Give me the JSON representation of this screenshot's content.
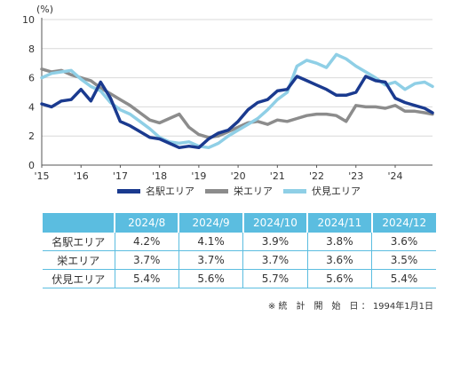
{
  "chart_data": {
    "type": "line",
    "ylabel": "(%)",
    "ylim": [
      0,
      10
    ],
    "yticks": [
      "0",
      "2",
      "4",
      "6",
      "8",
      "10"
    ],
    "xticks": [
      "'15",
      "'16",
      "'17",
      "'18",
      "'19",
      "'20",
      "'21",
      "'22",
      "'23",
      "'24"
    ],
    "x": [
      2015.0,
      2015.25,
      2015.5,
      2015.75,
      2016.0,
      2016.25,
      2016.5,
      2016.75,
      2017.0,
      2017.25,
      2017.5,
      2017.75,
      2018.0,
      2018.25,
      2018.5,
      2018.75,
      2019.0,
      2019.25,
      2019.5,
      2019.75,
      2020.0,
      2020.25,
      2020.5,
      2020.75,
      2021.0,
      2021.25,
      2021.5,
      2021.75,
      2022.0,
      2022.25,
      2022.5,
      2022.75,
      2023.0,
      2023.25,
      2023.5,
      2023.75,
      2024.0,
      2024.25,
      2024.5,
      2024.75,
      2024.95
    ],
    "series": [
      {
        "name": "名駅エリア",
        "color": "#1a3a8f",
        "width": 3.5,
        "values": [
          4.2,
          4.0,
          4.4,
          4.5,
          5.2,
          4.4,
          5.7,
          4.6,
          3.0,
          2.7,
          2.3,
          1.9,
          1.8,
          1.5,
          1.2,
          1.3,
          1.2,
          1.8,
          2.2,
          2.4,
          3.0,
          3.8,
          4.3,
          4.5,
          5.1,
          5.2,
          6.1,
          5.8,
          5.5,
          5.2,
          4.8,
          4.8,
          5.0,
          6.1,
          5.8,
          5.7,
          4.6,
          4.3,
          4.1,
          3.9,
          3.6
        ]
      },
      {
        "name": "栄エリア",
        "color": "#8c8c8c",
        "width": 3.5,
        "values": [
          6.6,
          6.4,
          6.5,
          6.2,
          6.0,
          5.8,
          5.3,
          4.9,
          4.5,
          4.1,
          3.6,
          3.1,
          2.9,
          3.2,
          3.5,
          2.6,
          2.1,
          1.9,
          2.0,
          2.3,
          2.6,
          2.9,
          3.0,
          2.8,
          3.1,
          3.0,
          3.2,
          3.4,
          3.5,
          3.5,
          3.4,
          3.0,
          4.1,
          4.0,
          4.0,
          3.9,
          4.1,
          3.7,
          3.7,
          3.6,
          3.5
        ]
      },
      {
        "name": "伏見エリア",
        "color": "#8fcfe6",
        "width": 3.5,
        "values": [
          6.0,
          6.3,
          6.4,
          6.5,
          5.9,
          5.4,
          5.1,
          4.3,
          3.8,
          3.5,
          3.0,
          2.5,
          1.9,
          1.6,
          1.5,
          1.6,
          1.3,
          1.2,
          1.5,
          2.0,
          2.4,
          2.8,
          3.2,
          3.8,
          4.5,
          5.0,
          6.8,
          7.2,
          7.0,
          6.7,
          7.6,
          7.3,
          6.8,
          6.4,
          6.0,
          5.5,
          5.7,
          5.2,
          5.6,
          5.7,
          5.4
        ]
      }
    ]
  },
  "table": {
    "headers": [
      "",
      "2024/8",
      "2024/9",
      "2024/10",
      "2024/11",
      "2024/12"
    ],
    "rows": [
      [
        "名駅エリア",
        "4.2%",
        "4.1%",
        "3.9%",
        "3.8%",
        "3.6%"
      ],
      [
        "栄エリア",
        "3.7%",
        "3.7%",
        "3.7%",
        "3.6%",
        "3.5%"
      ],
      [
        "伏見エリア",
        "5.4%",
        "5.6%",
        "5.7%",
        "5.6%",
        "5.4%"
      ]
    ]
  },
  "note": "※ 統　計　開　始　日 ： 1994年1月1日"
}
